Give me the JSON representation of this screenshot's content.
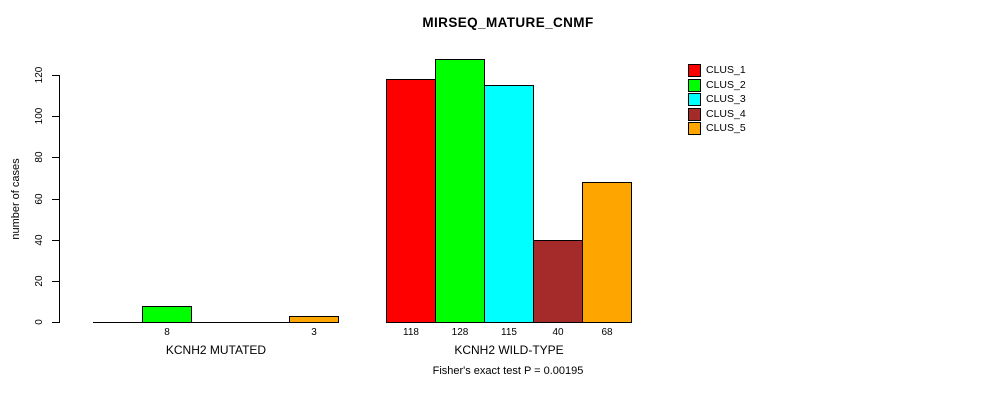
{
  "chart_data": {
    "type": "bar",
    "title": "MIRSEQ_MATURE_CNMF",
    "ylabel": "number of cases",
    "xlabel": "",
    "ylim": [
      0,
      128
    ],
    "yticks": [
      0,
      20,
      40,
      60,
      80,
      100,
      120
    ],
    "grid": false,
    "legend_position": "topright",
    "categories": [
      "KCNH2 MUTATED",
      "KCNH2 WILD-TYPE"
    ],
    "series": [
      {
        "name": "CLUS_1",
        "color": "#FF0000",
        "values": [
          0,
          118
        ]
      },
      {
        "name": "CLUS_2",
        "color": "#00FF00",
        "values": [
          8,
          128
        ]
      },
      {
        "name": "CLUS_3",
        "color": "#00FFFF",
        "values": [
          0,
          115
        ]
      },
      {
        "name": "CLUS_4",
        "color": "#A52A2A",
        "values": [
          0,
          40
        ]
      },
      {
        "name": "CLUS_5",
        "color": "#FFA500",
        "values": [
          3,
          68
        ]
      }
    ],
    "bar_value_labels_shown": [
      [
        "8",
        "3"
      ],
      [
        "118",
        "128",
        "115",
        "40",
        "68"
      ]
    ],
    "annotation": "Fisher's exact test P = 0.00195"
  }
}
